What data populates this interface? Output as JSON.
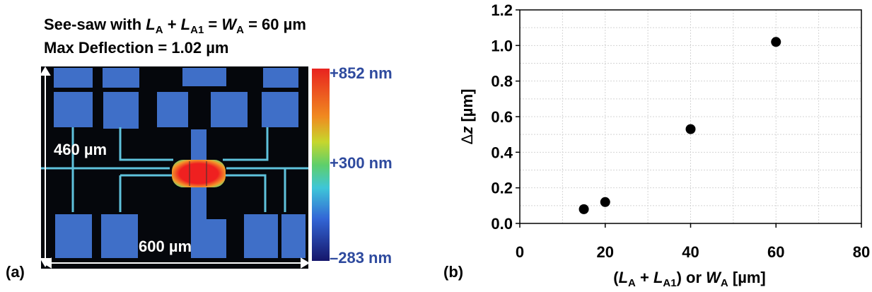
{
  "panel_a": {
    "label": "(a)",
    "title_line1": [
      "See-saw with ",
      "L",
      "A",
      " + ",
      "L",
      "A1",
      " = ",
      "W",
      "A",
      " = 60 µm"
    ],
    "title_line2": "Max Deflection = 1.02 µm",
    "height_label": "460 µm",
    "width_label": "600 µm",
    "colorbar_labels": [
      "+852 nm",
      "+300 nm",
      "–283 nm"
    ]
  },
  "chart_data": {
    "type": "scatter",
    "panel_label": "(b)",
    "x_label": [
      "(",
      "L",
      "A",
      " + ",
      "L",
      "A1",
      ") or ",
      "W",
      "A",
      " [µm]"
    ],
    "y_label": [
      "Δ",
      "z",
      " [µm]"
    ],
    "x": [
      15,
      20,
      40,
      60
    ],
    "values": [
      0.08,
      0.12,
      0.53,
      1.02
    ],
    "color": "#000000",
    "xlim": [
      0,
      80
    ],
    "xticks": [
      0,
      20,
      40,
      60,
      80
    ],
    "ylim": [
      0,
      1.2
    ],
    "yticks": [
      {
        "value": 0,
        "label": "0.0"
      },
      0.2,
      0.4,
      0.6,
      0.8,
      {
        "value": 1,
        "label": "1.0"
      },
      1.2
    ],
    "minor_xticks": [
      10,
      30,
      50,
      70
    ],
    "minor_yticks": [
      0.1,
      0.3,
      0.5,
      0.7,
      0.9,
      1.1
    ],
    "grid": true
  }
}
